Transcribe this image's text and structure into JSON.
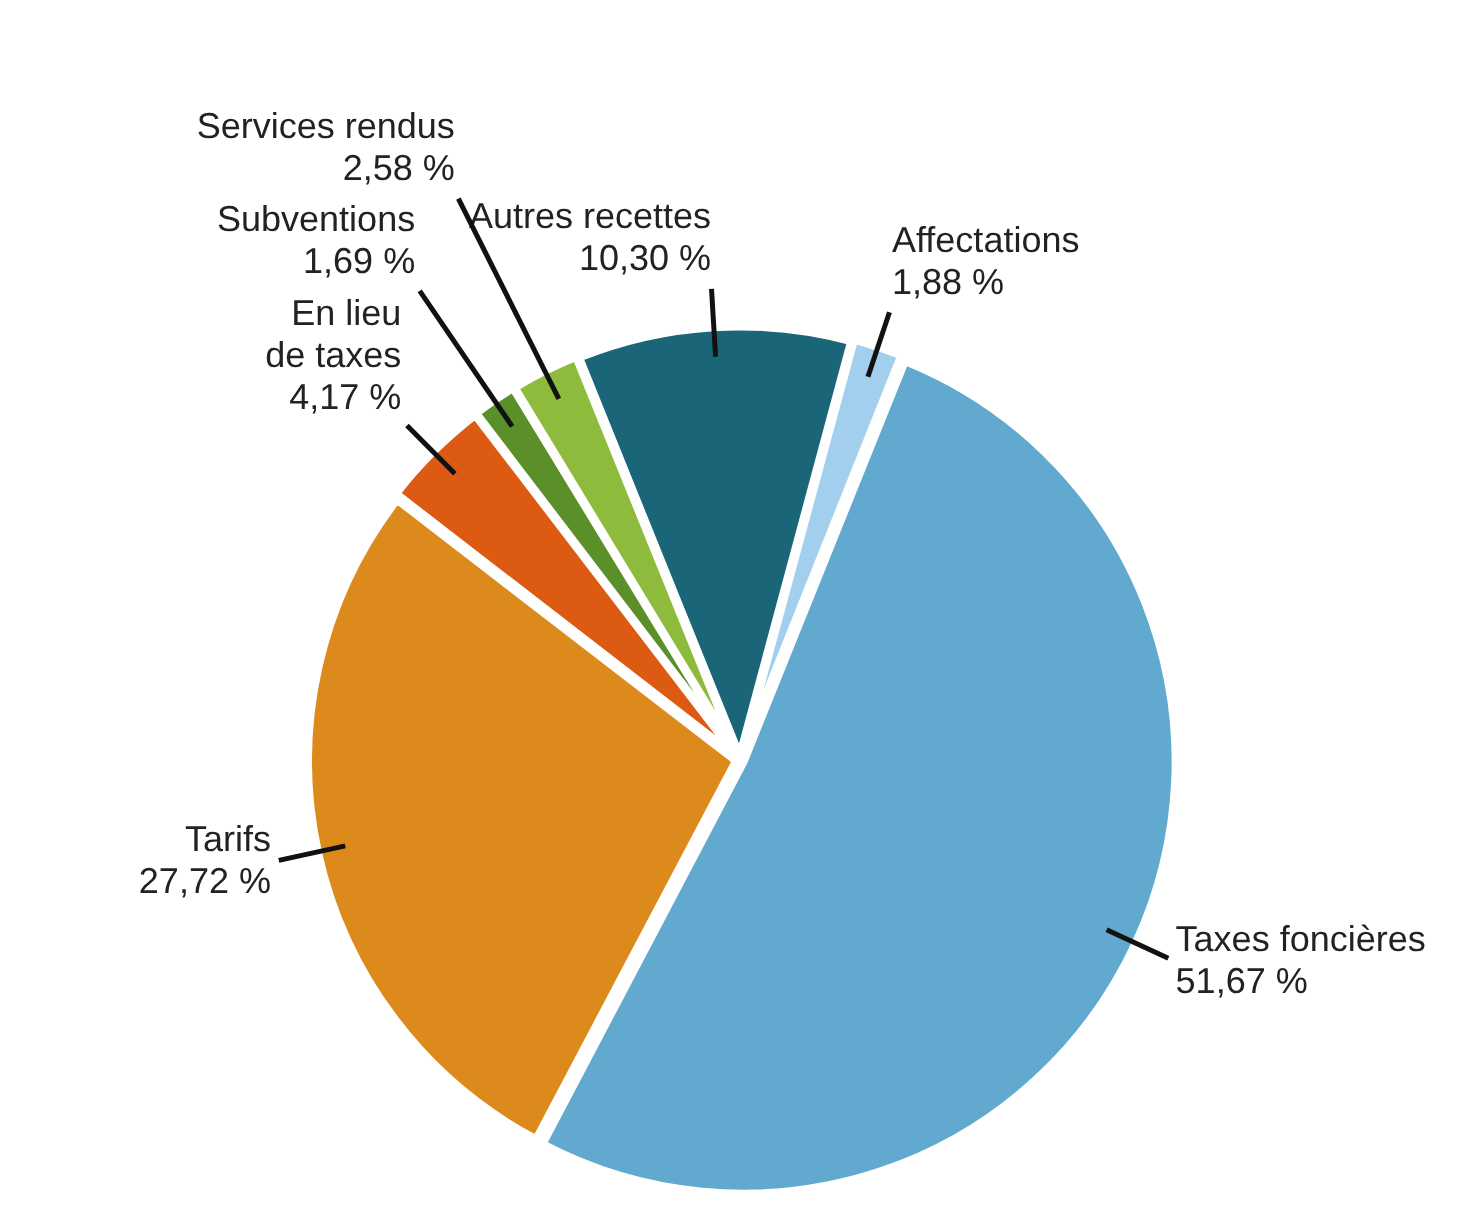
{
  "chart_data": {
    "type": "pie",
    "categories": [
      "Autres recettes",
      "Affectations",
      "Taxes foncières",
      "Tarifs",
      "En lieu\nde taxes",
      "Subventions",
      "Services rendus"
    ],
    "values": [
      10.3,
      1.88,
      51.67,
      27.72,
      4.17,
      1.69,
      2.58
    ],
    "value_labels": [
      "10,30 %",
      "1,88 %",
      "51,67 %",
      "27,72 %",
      "4,17 %",
      "1,69 %",
      "2,58 %"
    ],
    "colors": [
      "#1a6678",
      "#a3cfee",
      "#62a9cf",
      "#dc8a1b",
      "#dd5a12",
      "#5a8f2a",
      "#8fbb3d"
    ],
    "legend": false
  }
}
